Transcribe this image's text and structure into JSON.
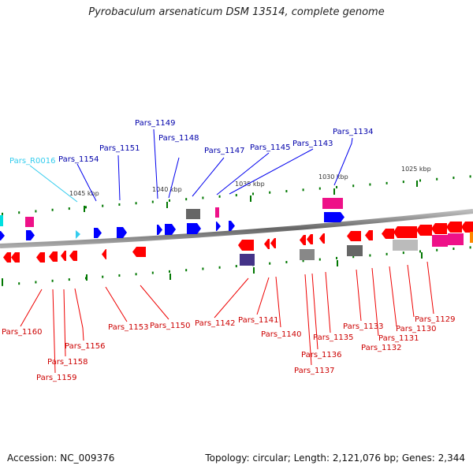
{
  "title": "Pyrobaculum arsenaticum DSM 13514, complete genome",
  "footer": {
    "accession": "Accession: NC_009376",
    "summary": "Topology: circular; Length: 2,121,076 bp; Genes: 2,344"
  },
  "colors": {
    "forward_gene": "#0000ff",
    "reverse_gene": "#ff0000",
    "rna_gene": "#33ccee",
    "forward_label": "#0000aa",
    "reverse_label": "#cc0000",
    "rna_label": "#33ccee",
    "tick": "#007700",
    "backbone": "#777777"
  },
  "scale_labels": [
    "1045 kbp",
    "1040 kbp",
    "1035 kbp",
    "1030 kbp",
    "1025 kbp"
  ],
  "top_labels": [
    "Pars_R0016",
    "Pars_1154",
    "Pars_1151",
    "Pars_1149",
    "Pars_1148",
    "Pars_1147",
    "Pars_1145",
    "Pars_1143",
    "Pars_1134"
  ],
  "bottom_labels": [
    "Pars_1160",
    "Pars_1159",
    "Pars_1158",
    "Pars_1156",
    "Pars_1153",
    "Pars_1150",
    "Pars_1142",
    "Pars_1141",
    "Pars_1140",
    "Pars_1137",
    "Pars_1136",
    "Pars_1135",
    "Pars_1133",
    "Pars_1132",
    "Pars_1131",
    "Pars_1130",
    "Pars_1129"
  ]
}
